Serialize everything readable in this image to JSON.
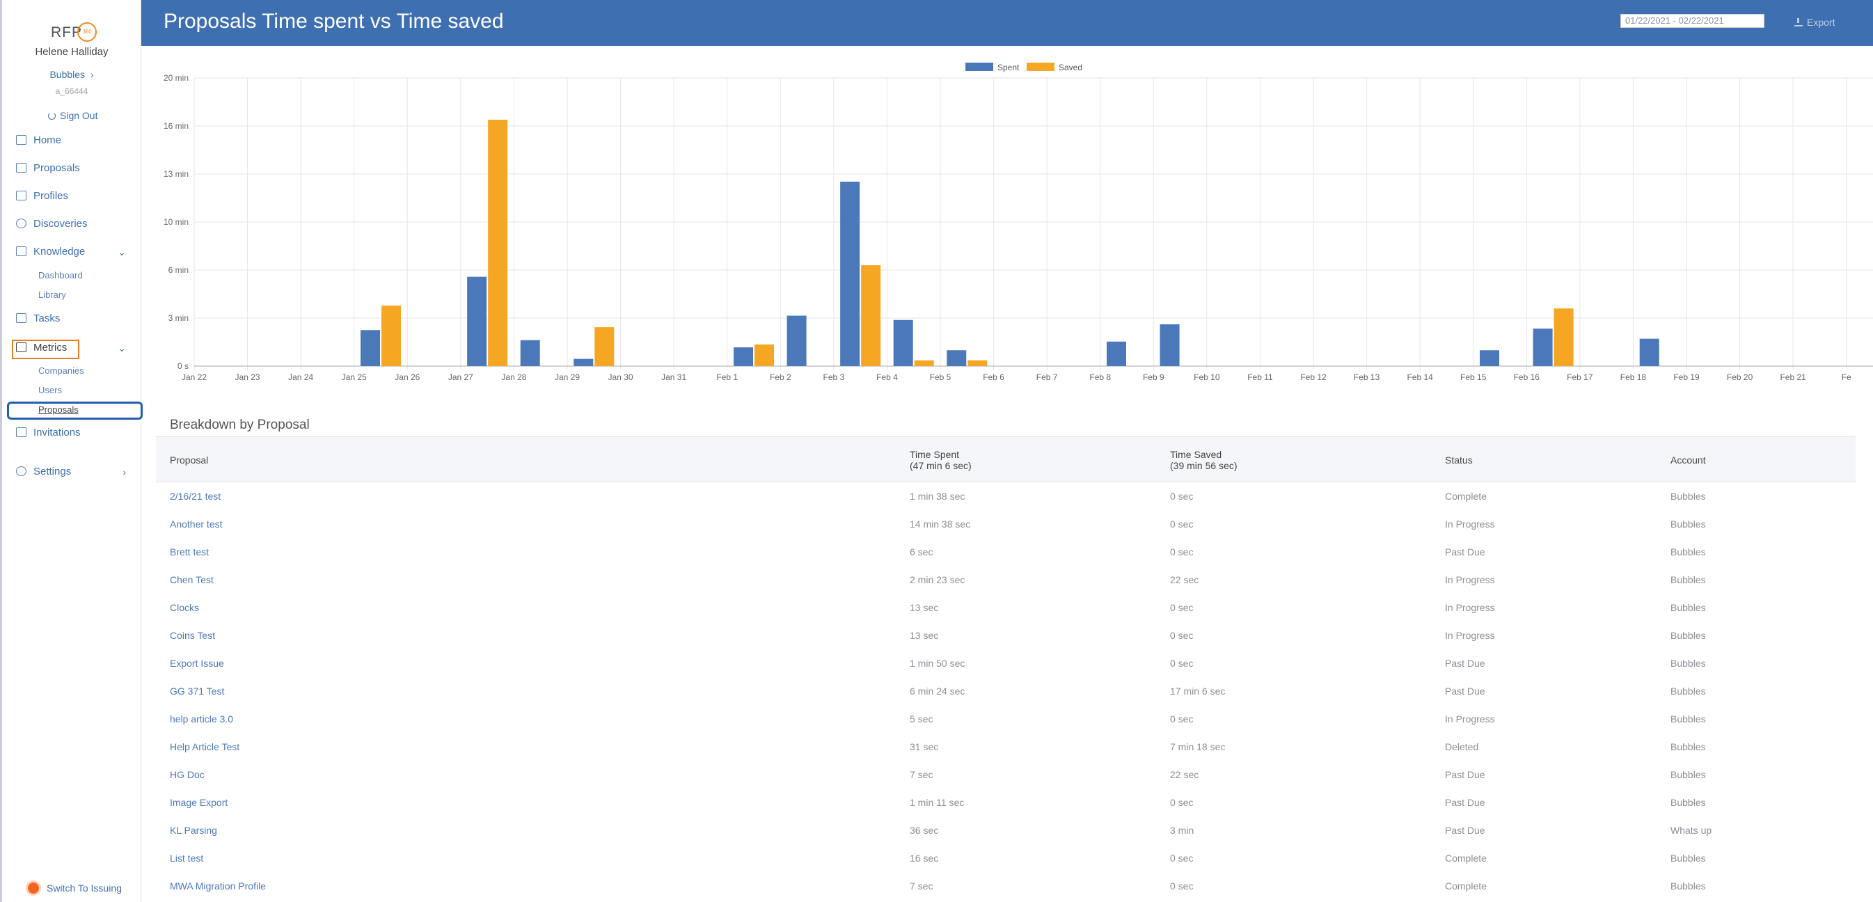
{
  "sidebar": {
    "logo_text": "RFP",
    "logo_badge": "360",
    "user_name": "Helene Halliday",
    "account": "Bubbles",
    "account_id": "a_66444",
    "sign_out": "Sign Out",
    "nav": {
      "home": "Home",
      "proposals": "Proposals",
      "profiles": "Profiles",
      "discoveries": "Discoveries",
      "knowledge": "Knowledge",
      "knowledge_dashboard": "Dashboard",
      "knowledge_library": "Library",
      "tasks": "Tasks",
      "metrics": "Metrics",
      "metrics_companies": "Companies",
      "metrics_users": "Users",
      "metrics_proposals": "Proposals",
      "invitations": "Invitations",
      "settings": "Settings"
    },
    "switch_label": "Switch To Issuing"
  },
  "header": {
    "title": "Proposals Time spent vs Time saved",
    "date_range": "01/22/2021 - 02/22/2021",
    "export_label": "Export"
  },
  "chart_data": {
    "type": "bar",
    "categories": [
      "Jan 22",
      "Jan 23",
      "Jan 24",
      "Jan 25",
      "Jan 26",
      "Jan 27",
      "Jan 28",
      "Jan 29",
      "Jan 30",
      "Jan 31",
      "Feb 1",
      "Feb 2",
      "Feb 3",
      "Feb 4",
      "Feb 5",
      "Feb 6",
      "Feb 7",
      "Feb 8",
      "Feb 9",
      "Feb 10",
      "Feb 11",
      "Feb 12",
      "Feb 13",
      "Feb 14",
      "Feb 15",
      "Feb 16",
      "Feb 17",
      "Feb 18",
      "Feb 19",
      "Feb 20",
      "Feb 21",
      "Fe"
    ],
    "series": [
      {
        "name": "Spent",
        "color": "#4a78b8",
        "values": [
          0,
          0,
          0,
          2.5,
          0,
          6.2,
          1.8,
          0.5,
          0,
          0,
          1.3,
          3.5,
          12.8,
          3.2,
          1.1,
          0,
          0,
          1.7,
          2.9,
          0,
          0,
          0,
          0,
          0,
          1.1,
          2.6,
          0,
          1.9,
          0,
          0,
          0,
          0
        ]
      },
      {
        "name": "Saved",
        "color": "#f5a623",
        "values": [
          0,
          0,
          0,
          4.2,
          0,
          17.1,
          0,
          2.7,
          0,
          0,
          1.5,
          0,
          7.0,
          0.4,
          0.4,
          0,
          0,
          0,
          0,
          0,
          0,
          0,
          0,
          0,
          0,
          4.0,
          0,
          0,
          0,
          0,
          0,
          0
        ]
      }
    ],
    "yticks": [
      "0 s",
      "3 min",
      "6 min",
      "10 min",
      "13 min",
      "16 min",
      "20 min"
    ],
    "ylim": [
      0,
      20
    ],
    "legend": "top-center",
    "grid": true
  },
  "breakdown": {
    "title": "Breakdown by Proposal",
    "headers": {
      "proposal": "Proposal",
      "time_spent": "Time Spent",
      "time_spent_total": "(47 min 6 sec)",
      "time_saved": "Time Saved",
      "time_saved_total": "(39 min 56 sec)",
      "status": "Status",
      "account": "Account"
    },
    "rows": [
      {
        "proposal": "2/16/21 test",
        "spent": "1 min 38 sec",
        "saved": "0 sec",
        "status": "Complete",
        "account": "Bubbles"
      },
      {
        "proposal": "Another test",
        "spent": "14 min 38 sec",
        "saved": "0 sec",
        "status": "In Progress",
        "account": "Bubbles"
      },
      {
        "proposal": "Brett test",
        "spent": "6 sec",
        "saved": "0 sec",
        "status": "Past Due",
        "account": "Bubbles"
      },
      {
        "proposal": "Chen Test",
        "spent": "2 min 23 sec",
        "saved": "22 sec",
        "status": "In Progress",
        "account": "Bubbles"
      },
      {
        "proposal": "Clocks",
        "spent": "13 sec",
        "saved": "0 sec",
        "status": "In Progress",
        "account": "Bubbles"
      },
      {
        "proposal": "Coins Test",
        "spent": "13 sec",
        "saved": "0 sec",
        "status": "In Progress",
        "account": "Bubbles"
      },
      {
        "proposal": "Export Issue",
        "spent": "1 min 50 sec",
        "saved": "0 sec",
        "status": "Past Due",
        "account": "Bubbles"
      },
      {
        "proposal": "GG 371 Test",
        "spent": "6 min 24 sec",
        "saved": "17 min 6 sec",
        "status": "Past Due",
        "account": "Bubbles"
      },
      {
        "proposal": "help article 3.0",
        "spent": "5 sec",
        "saved": "0 sec",
        "status": "In Progress",
        "account": "Bubbles"
      },
      {
        "proposal": "Help Article Test",
        "spent": "31 sec",
        "saved": "7 min 18 sec",
        "status": "Deleted",
        "account": "Bubbles"
      },
      {
        "proposal": "HG Doc",
        "spent": "7 sec",
        "saved": "22 sec",
        "status": "Past Due",
        "account": "Bubbles"
      },
      {
        "proposal": "Image Export",
        "spent": "1 min 11 sec",
        "saved": "0 sec",
        "status": "Past Due",
        "account": "Bubbles"
      },
      {
        "proposal": "KL Parsing",
        "spent": "36 sec",
        "saved": "3 min",
        "status": "Past Due",
        "account": "Whats up"
      },
      {
        "proposal": "List test",
        "spent": "16 sec",
        "saved": "0 sec",
        "status": "Complete",
        "account": "Bubbles"
      },
      {
        "proposal": "MWA Migration Profile",
        "spent": "7 sec",
        "saved": "0 sec",
        "status": "Complete",
        "account": "Bubbles"
      }
    ]
  }
}
